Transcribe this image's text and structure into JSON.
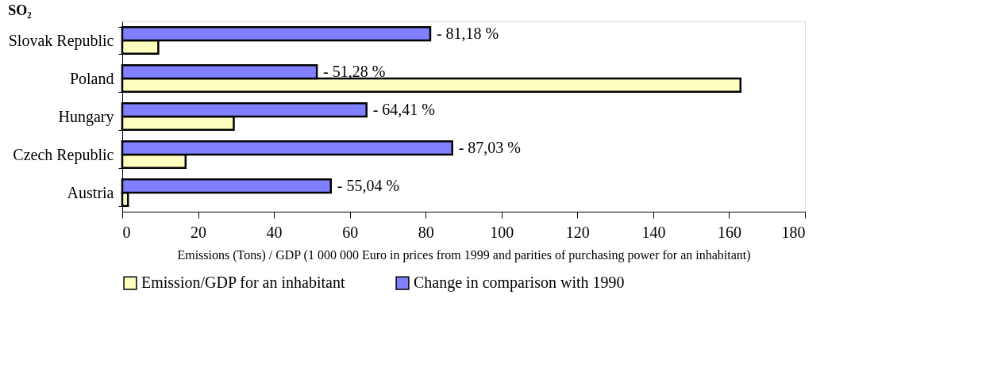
{
  "chart_data": {
    "type": "bar",
    "orientation": "horizontal",
    "title": "SO₂",
    "categories": [
      "Slovak Republic",
      "Poland",
      "Hungary",
      "Czech Republic",
      "Austria"
    ],
    "series": [
      {
        "name": "Emission/GDP for an inhabitant",
        "color": "#ffffc0",
        "values": [
          9.5,
          163,
          29.4,
          16.7,
          1.5
        ]
      },
      {
        "name": "Change in comparison with 1990",
        "color": "#8080ff",
        "values": [
          81.2,
          51.3,
          64.4,
          87.0,
          55.0
        ]
      }
    ],
    "annotations": [
      {
        "text": "- 81,18 %",
        "x": 81.2,
        "y": "Slovak Republic"
      },
      {
        "text": "- 51,28 %",
        "x": 51.3,
        "y": "Poland"
      },
      {
        "text": "- 64,41 %",
        "x": 64.4,
        "y": "Hungary"
      },
      {
        "text": "- 87,03 %",
        "x": 87.0,
        "y": "Czech Republic"
      },
      {
        "text": "- 55,04 %",
        "x": 55.0,
        "y": "Austria"
      }
    ],
    "xlabel": "Emissions (Tons) / GDP (1 000 000 Euro in prices from 1999 and parities of purchasing power for an inhabitant)",
    "xlim": [
      0,
      180
    ],
    "xticks": [
      0,
      20,
      40,
      60,
      80,
      100,
      120,
      140,
      160,
      180
    ],
    "grid": false,
    "legend": "bottom"
  }
}
